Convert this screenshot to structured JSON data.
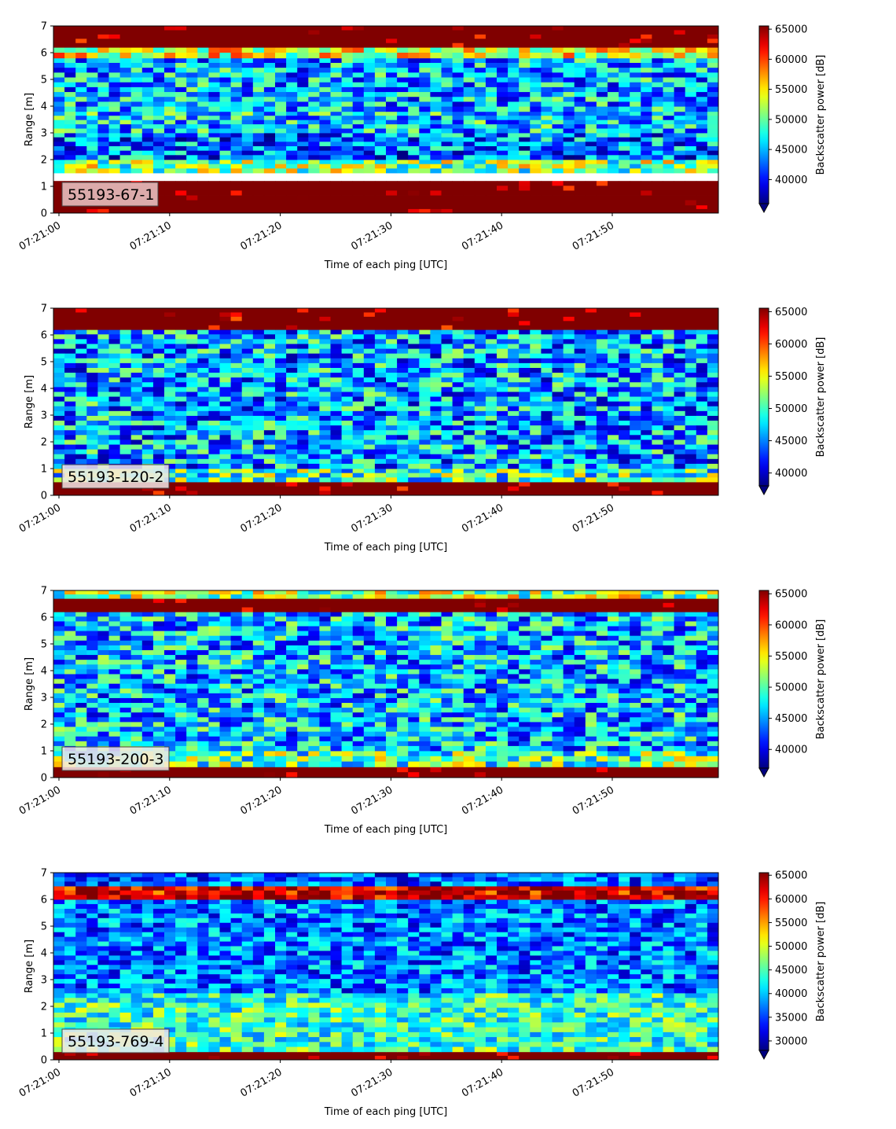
{
  "chart_data": [
    {
      "type": "heatmap",
      "label": "55193-67-1",
      "xlabel": "Time of each ping [UTC]",
      "ylabel": "Range [m]",
      "x_tick_labels": [
        "07:21:00",
        "07:21:10",
        "07:21:20",
        "07:21:30",
        "07:21:40",
        "07:21:50"
      ],
      "y_ticks": [
        0,
        1,
        2,
        3,
        4,
        5,
        6,
        7
      ],
      "ylim": [
        0,
        7
      ],
      "colorbar_label": "Backscatter power [dB]",
      "colorbar_ticks": [
        40000,
        45000,
        50000,
        55000,
        60000,
        65000
      ],
      "color_range": [
        36000,
        65535
      ],
      "colormap": "jet",
      "bands": [
        {
          "from": 0.0,
          "to": 0.3,
          "value": 65535
        },
        {
          "from": 0.3,
          "to": 1.2,
          "value": 65535
        },
        {
          "from": 1.5,
          "to": 2.0,
          "value": 51000
        },
        {
          "from": 2.0,
          "to": 3.0,
          "value": 43000
        },
        {
          "from": 3.0,
          "to": 3.8,
          "value": 46000
        },
        {
          "from": 3.8,
          "to": 5.8,
          "value": 45000
        },
        {
          "from": 5.8,
          "to": 6.2,
          "value": 54000
        },
        {
          "from": 6.2,
          "to": 7.0,
          "value": 65535
        }
      ]
    },
    {
      "type": "heatmap",
      "label": "55193-120-2",
      "xlabel": "Time of each ping [UTC]",
      "ylabel": "Range [m]",
      "x_tick_labels": [
        "07:21:00",
        "07:21:10",
        "07:21:20",
        "07:21:30",
        "07:21:40",
        "07:21:50"
      ],
      "y_ticks": [
        0,
        1,
        2,
        3,
        4,
        5,
        6,
        7
      ],
      "ylim": [
        0,
        7
      ],
      "colorbar_label": "Backscatter power [dB]",
      "colorbar_ticks": [
        40000,
        45000,
        50000,
        55000,
        60000,
        65000
      ],
      "color_range": [
        38000,
        65535
      ],
      "colormap": "jet",
      "bands": [
        {
          "from": 0.0,
          "to": 0.5,
          "value": 65535
        },
        {
          "from": 0.5,
          "to": 1.0,
          "value": 50000
        },
        {
          "from": 1.0,
          "to": 6.2,
          "value": 46000
        },
        {
          "from": 6.2,
          "to": 7.0,
          "value": 65535
        }
      ]
    },
    {
      "type": "heatmap",
      "label": "55193-200-3",
      "xlabel": "Time of each ping [UTC]",
      "ylabel": "Range [m]",
      "x_tick_labels": [
        "07:21:00",
        "07:21:10",
        "07:21:20",
        "07:21:30",
        "07:21:40",
        "07:21:50"
      ],
      "y_ticks": [
        0,
        1,
        2,
        3,
        4,
        5,
        6,
        7
      ],
      "ylim": [
        0,
        7
      ],
      "colorbar_label": "Backscatter power [dB]",
      "colorbar_ticks": [
        40000,
        45000,
        50000,
        55000,
        60000,
        65000
      ],
      "color_range": [
        37000,
        65535
      ],
      "colormap": "jet",
      "bands": [
        {
          "from": 0.0,
          "to": 0.4,
          "value": 65535
        },
        {
          "from": 0.4,
          "to": 1.0,
          "value": 50000
        },
        {
          "from": 1.0,
          "to": 6.2,
          "value": 46000
        },
        {
          "from": 6.2,
          "to": 6.7,
          "value": 65535
        },
        {
          "from": 6.7,
          "to": 7.0,
          "value": 52000
        }
      ]
    },
    {
      "type": "heatmap",
      "label": "55193-769-4",
      "xlabel": "Time of each ping [UTC]",
      "ylabel": "Range [m]",
      "x_tick_labels": [
        "07:21:00",
        "07:21:10",
        "07:21:20",
        "07:21:30",
        "07:21:40",
        "07:21:50"
      ],
      "y_ticks": [
        0,
        1,
        2,
        3,
        4,
        5,
        6,
        7
      ],
      "ylim": [
        0,
        7
      ],
      "colorbar_label": "Backscatter power [dB]",
      "colorbar_ticks": [
        30000,
        35000,
        40000,
        45000,
        50000,
        55000,
        60000,
        65000
      ],
      "color_range": [
        28000,
        65535
      ],
      "colormap": "jet",
      "bands": [
        {
          "from": 0.0,
          "to": 0.3,
          "value": 65535
        },
        {
          "from": 0.3,
          "to": 2.5,
          "value": 44000
        },
        {
          "from": 2.5,
          "to": 6.0,
          "value": 37000
        },
        {
          "from": 6.0,
          "to": 6.5,
          "value": 62000
        },
        {
          "from": 6.5,
          "to": 7.0,
          "value": 36000
        }
      ]
    }
  ]
}
